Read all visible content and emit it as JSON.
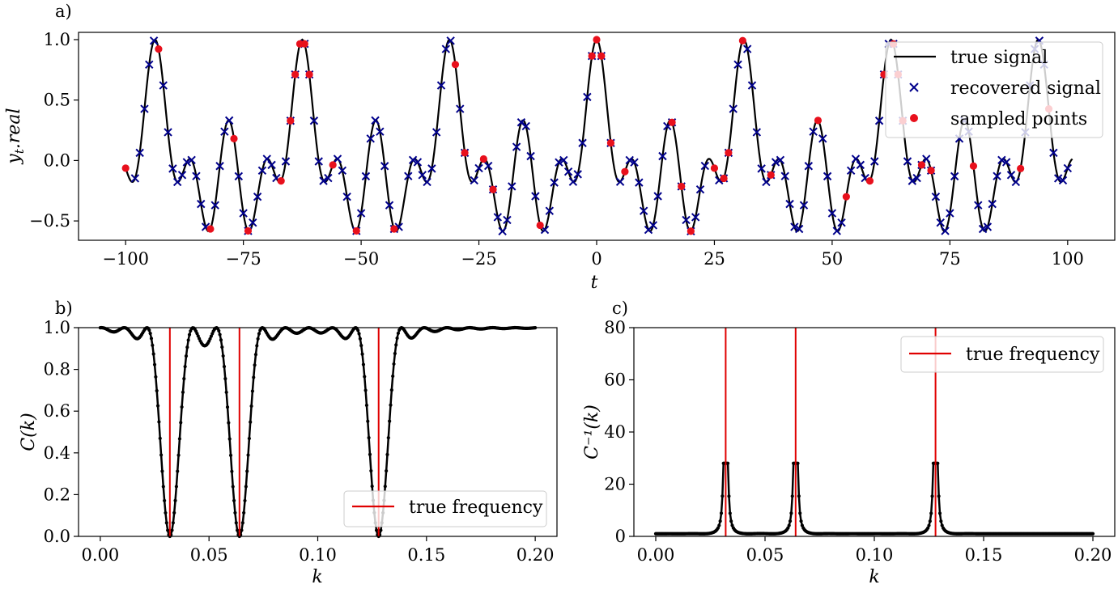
{
  "figure": {
    "colors": {
      "signal": "#000000",
      "recovered": "#00008b",
      "sampled": "#e8101c",
      "truefreq": "#e00000"
    },
    "panels": [
      "a)",
      "b)",
      "c)"
    ]
  },
  "chart_data": [
    {
      "id": "a",
      "type": "line",
      "xlabel": "t",
      "ylabel": "y_t.real",
      "xlim": [
        -110,
        110
      ],
      "ylim": [
        -0.66,
        1.06
      ],
      "xticks": [
        -100,
        -75,
        -50,
        -25,
        0,
        25,
        50,
        75,
        100
      ],
      "xtick_labels": [
        "−100",
        "−75",
        "−50",
        "−25",
        "0",
        "25",
        "50",
        "75",
        "100"
      ],
      "yticks": [
        -0.5,
        0.0,
        0.5,
        1.0
      ],
      "ytick_labels": [
        "−0.5",
        "0.0",
        "0.5",
        "1.0"
      ],
      "signal": {
        "formula": "(cos(2π·f1·t)+cos(2π·f2·t)+cos(2π·f3·t))/3",
        "frequencies": [
          0.032,
          0.064,
          0.128
        ],
        "t_range": [
          -100,
          101
        ]
      },
      "recovered_t": [
        -98,
        -97,
        -96,
        -95,
        -94,
        -92,
        -91,
        -90,
        -89,
        -88,
        -87,
        -86,
        -85,
        -84,
        -83,
        -81,
        -80,
        -79,
        -78,
        -76,
        -75,
        -74,
        -73,
        -72,
        -71,
        -70,
        -69,
        -68,
        -66,
        -65,
        -64,
        -62,
        -61,
        -60,
        -59,
        -58,
        -57,
        -55,
        -54,
        -53,
        -51,
        -50,
        -49,
        -48,
        -47,
        -46,
        -45,
        -44,
        -43,
        -42,
        -40,
        -39,
        -38,
        -37,
        -36,
        -35,
        -34,
        -33,
        -32,
        -31,
        -29,
        -28,
        -26,
        -25,
        -23,
        -22,
        -21,
        -20,
        -19,
        -18,
        -17,
        -16,
        -15,
        -14,
        -13,
        -11,
        -10,
        -9,
        -8,
        -7,
        -6,
        -5,
        -4,
        -3,
        -2,
        -1,
        1,
        3,
        5,
        7,
        8,
        9,
        10,
        11,
        12,
        13,
        14,
        15,
        16,
        18,
        19,
        20,
        21,
        22,
        23,
        26,
        27,
        28,
        29,
        30,
        32,
        33,
        34,
        35,
        36,
        37,
        38,
        39,
        40,
        41,
        42,
        43,
        44,
        45,
        46,
        48,
        49,
        50,
        51,
        52,
        54,
        55,
        56,
        57,
        59,
        60,
        61,
        62,
        63,
        64,
        65,
        66,
        67,
        68,
        69,
        70,
        71,
        72,
        73,
        74,
        75,
        76,
        77,
        78,
        79,
        81,
        82,
        83,
        84,
        85,
        86,
        87,
        88,
        89,
        91,
        92,
        93,
        94,
        95,
        97,
        98,
        99,
        100
      ],
      "sampled_t": [
        -100,
        -93,
        -82,
        -77,
        -74,
        -67,
        -65,
        -64,
        -63,
        -62,
        -61,
        -56,
        -51,
        -43,
        -30,
        -28,
        -24,
        -22,
        -12,
        -1,
        0,
        1,
        3,
        6,
        16,
        18,
        20,
        25,
        27,
        28,
        31,
        37,
        47,
        53,
        58,
        61,
        63,
        64,
        65,
        69,
        71,
        80,
        90,
        96
      ],
      "legend": {
        "position": "top-right",
        "entries": [
          {
            "label": "true signal",
            "marker": "line"
          },
          {
            "label": "recovered signal",
            "marker": "x"
          },
          {
            "label": "sampled points",
            "marker": "dot"
          }
        ]
      }
    },
    {
      "id": "b",
      "type": "line",
      "xlabel": "k",
      "ylabel": "C(k)",
      "xlim": [
        -0.01,
        0.21
      ],
      "ylim": [
        0.0,
        1.0
      ],
      "xticks": [
        0.0,
        0.05,
        0.1,
        0.15,
        0.2
      ],
      "xtick_labels": [
        "0.00",
        "0.05",
        "0.10",
        "0.15",
        "0.20"
      ],
      "yticks": [
        0.0,
        0.2,
        0.4,
        0.6,
        0.8,
        1.0
      ],
      "ytick_labels": [
        "0.0",
        "0.2",
        "0.4",
        "0.6",
        "0.8",
        "1.0"
      ],
      "k_range": [
        0.0,
        0.2
      ],
      "true_frequencies": [
        0.032,
        0.064,
        0.128
      ],
      "legend": {
        "position": "bottom-right",
        "entries": [
          {
            "label": "true frequency",
            "marker": "line"
          }
        ]
      }
    },
    {
      "id": "c",
      "type": "line",
      "xlabel": "k",
      "ylabel": "C⁻¹(k)",
      "xlim": [
        -0.01,
        0.21
      ],
      "ylim": [
        0,
        80
      ],
      "xticks": [
        0.0,
        0.05,
        0.1,
        0.15,
        0.2
      ],
      "xtick_labels": [
        "0.00",
        "0.05",
        "0.10",
        "0.15",
        "0.20"
      ],
      "yticks": [
        0,
        20,
        40,
        60,
        80
      ],
      "ytick_labels": [
        "0",
        "20",
        "40",
        "60",
        "80"
      ],
      "k_range": [
        0.0,
        0.2
      ],
      "true_frequencies": [
        0.032,
        0.064,
        0.128
      ],
      "legend": {
        "position": "top-right",
        "entries": [
          {
            "label": "true frequency",
            "marker": "line"
          }
        ]
      }
    }
  ]
}
